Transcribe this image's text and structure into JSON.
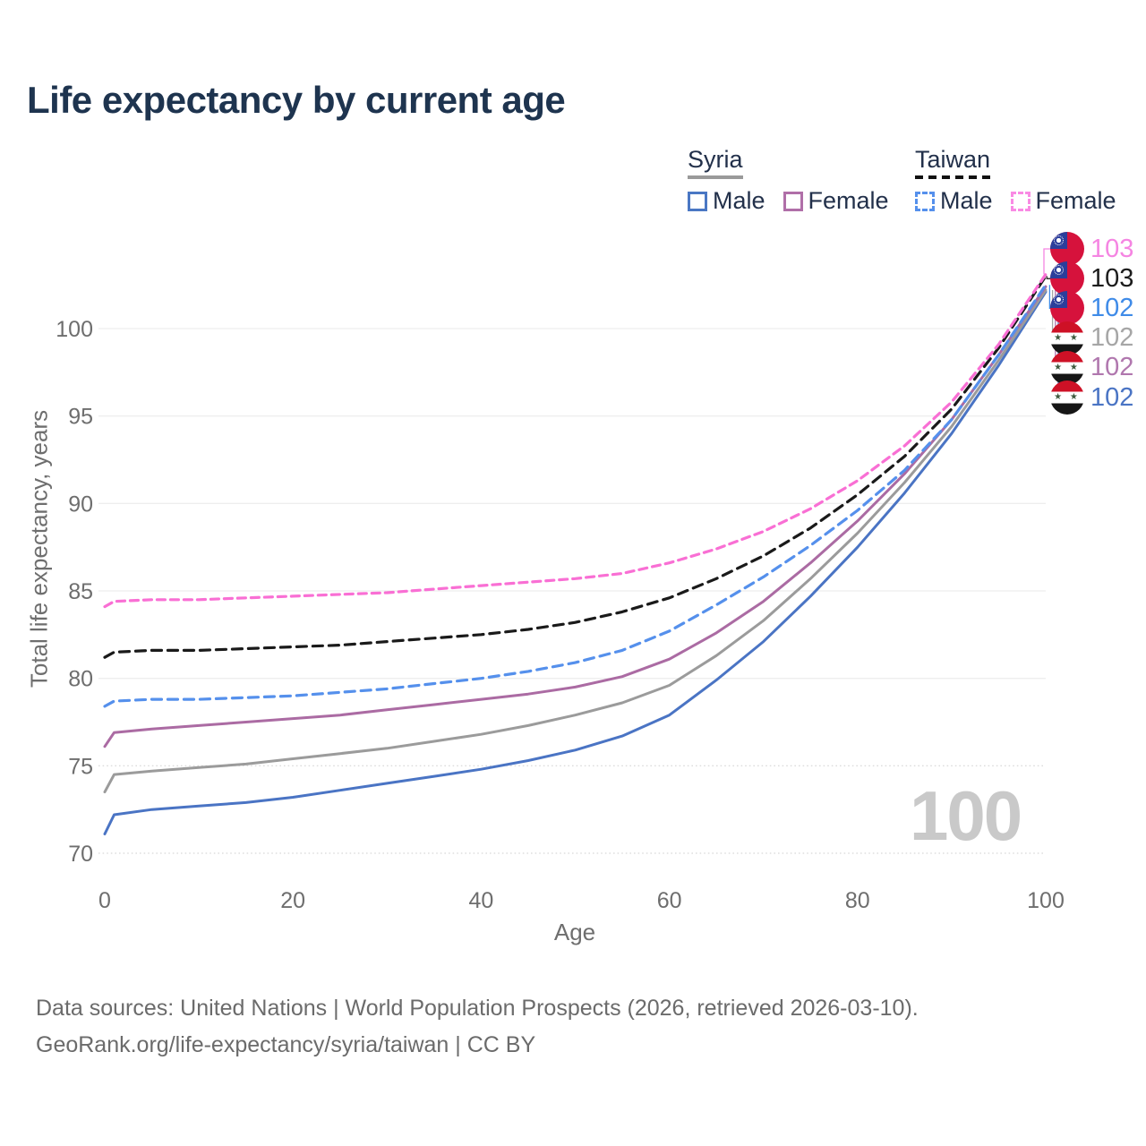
{
  "title": "Life expectancy by current age",
  "watermark": "100",
  "legend": {
    "groups": [
      {
        "id": "syria",
        "name": "Syria",
        "line_style": "solid",
        "line_color": "#9a9a9a",
        "items": [
          {
            "id": "syria-male",
            "label": "Male",
            "color": "#4a77c4",
            "style": "solid"
          },
          {
            "id": "syria-female",
            "label": "Female",
            "color": "#b06fa8",
            "style": "solid"
          }
        ]
      },
      {
        "id": "taiwan",
        "name": "Taiwan",
        "line_style": "dashed",
        "line_color": "#111111",
        "items": [
          {
            "id": "taiwan-male",
            "label": "Male",
            "color": "#5590ec",
            "style": "dashed"
          },
          {
            "id": "taiwan-female",
            "label": "Female",
            "color": "#f98ae4",
            "style": "dashed"
          }
        ]
      }
    ]
  },
  "chart_data": {
    "type": "line",
    "title": "Life expectancy by current age",
    "xlabel": "Age",
    "ylabel": "Total life expectancy, years",
    "xlim": [
      0,
      100
    ],
    "ylim": [
      69.5,
      103.5
    ],
    "x_ticks": [
      0,
      20,
      40,
      60,
      80,
      100
    ],
    "y_ticks": [
      {
        "value": 70,
        "style": "dotted"
      },
      {
        "value": 75,
        "style": "dotted"
      },
      {
        "value": 80,
        "style": "solid"
      },
      {
        "value": 85,
        "style": "solid"
      },
      {
        "value": 90,
        "style": "solid"
      },
      {
        "value": 95,
        "style": "solid"
      },
      {
        "value": 100,
        "style": "solid"
      }
    ],
    "grid": true,
    "legend_position": "top-right",
    "series": [
      {
        "id": "syria-male",
        "country": "Syria",
        "sex": "Male",
        "color": "#4a74c4",
        "dash": null,
        "width": 3,
        "points": [
          [
            0,
            71.1
          ],
          [
            1,
            72.2
          ],
          [
            5,
            72.5
          ],
          [
            10,
            72.7
          ],
          [
            15,
            72.9
          ],
          [
            20,
            73.2
          ],
          [
            25,
            73.6
          ],
          [
            30,
            74.0
          ],
          [
            35,
            74.4
          ],
          [
            40,
            74.8
          ],
          [
            45,
            75.3
          ],
          [
            50,
            75.9
          ],
          [
            55,
            76.7
          ],
          [
            60,
            77.9
          ],
          [
            65,
            79.9
          ],
          [
            70,
            82.1
          ],
          [
            75,
            84.7
          ],
          [
            80,
            87.5
          ],
          [
            85,
            90.6
          ],
          [
            90,
            94.0
          ],
          [
            95,
            97.9
          ],
          [
            100,
            102.1
          ]
        ]
      },
      {
        "id": "syria-combined",
        "country": "Syria",
        "sex": "Both",
        "color": "#9b9b9b",
        "dash": null,
        "width": 3,
        "points": [
          [
            0,
            73.5
          ],
          [
            1,
            74.5
          ],
          [
            5,
            74.7
          ],
          [
            10,
            74.9
          ],
          [
            15,
            75.1
          ],
          [
            20,
            75.4
          ],
          [
            25,
            75.7
          ],
          [
            30,
            76.0
          ],
          [
            35,
            76.4
          ],
          [
            40,
            76.8
          ],
          [
            45,
            77.3
          ],
          [
            50,
            77.9
          ],
          [
            55,
            78.6
          ],
          [
            60,
            79.6
          ],
          [
            65,
            81.3
          ],
          [
            70,
            83.3
          ],
          [
            75,
            85.7
          ],
          [
            80,
            88.3
          ],
          [
            85,
            91.2
          ],
          [
            90,
            94.4
          ],
          [
            95,
            98.2
          ],
          [
            100,
            102.2
          ]
        ]
      },
      {
        "id": "syria-female",
        "country": "Syria",
        "sex": "Female",
        "color": "#ab6ba3",
        "dash": null,
        "width": 3,
        "points": [
          [
            0,
            76.1
          ],
          [
            1,
            76.9
          ],
          [
            5,
            77.1
          ],
          [
            10,
            77.3
          ],
          [
            15,
            77.5
          ],
          [
            20,
            77.7
          ],
          [
            25,
            77.9
          ],
          [
            30,
            78.2
          ],
          [
            35,
            78.5
          ],
          [
            40,
            78.8
          ],
          [
            45,
            79.1
          ],
          [
            50,
            79.5
          ],
          [
            55,
            80.1
          ],
          [
            60,
            81.1
          ],
          [
            65,
            82.6
          ],
          [
            70,
            84.4
          ],
          [
            75,
            86.6
          ],
          [
            80,
            89.0
          ],
          [
            85,
            91.7
          ],
          [
            90,
            94.8
          ],
          [
            95,
            98.5
          ],
          [
            100,
            102.4
          ]
        ]
      },
      {
        "id": "taiwan-male",
        "country": "Taiwan",
        "sex": "Male",
        "color": "#5590ec",
        "dash": "11 7",
        "width": 3.2,
        "points": [
          [
            0,
            78.4
          ],
          [
            1,
            78.7
          ],
          [
            5,
            78.8
          ],
          [
            10,
            78.8
          ],
          [
            15,
            78.9
          ],
          [
            20,
            79.0
          ],
          [
            25,
            79.2
          ],
          [
            30,
            79.4
          ],
          [
            35,
            79.7
          ],
          [
            40,
            80.0
          ],
          [
            45,
            80.4
          ],
          [
            50,
            80.9
          ],
          [
            55,
            81.6
          ],
          [
            60,
            82.7
          ],
          [
            65,
            84.2
          ],
          [
            70,
            85.8
          ],
          [
            75,
            87.6
          ],
          [
            80,
            89.6
          ],
          [
            85,
            91.9
          ],
          [
            90,
            94.8
          ],
          [
            95,
            98.5
          ],
          [
            100,
            102.5
          ]
        ]
      },
      {
        "id": "taiwan-combined",
        "country": "Taiwan",
        "sex": "Both",
        "color": "#1a1a1a",
        "dash": "11 7",
        "width": 3.2,
        "points": [
          [
            0,
            81.2
          ],
          [
            1,
            81.5
          ],
          [
            5,
            81.6
          ],
          [
            10,
            81.6
          ],
          [
            15,
            81.7
          ],
          [
            20,
            81.8
          ],
          [
            25,
            81.9
          ],
          [
            30,
            82.1
          ],
          [
            35,
            82.3
          ],
          [
            40,
            82.5
          ],
          [
            45,
            82.8
          ],
          [
            50,
            83.2
          ],
          [
            55,
            83.8
          ],
          [
            60,
            84.6
          ],
          [
            65,
            85.7
          ],
          [
            70,
            87.0
          ],
          [
            75,
            88.6
          ],
          [
            80,
            90.5
          ],
          [
            85,
            92.7
          ],
          [
            90,
            95.4
          ],
          [
            95,
            98.9
          ],
          [
            100,
            103.0
          ]
        ]
      },
      {
        "id": "taiwan-female",
        "country": "Taiwan",
        "sex": "Female",
        "color": "#f96fd4",
        "dash": "9 6",
        "width": 3.2,
        "points": [
          [
            0,
            84.1
          ],
          [
            1,
            84.4
          ],
          [
            5,
            84.5
          ],
          [
            10,
            84.5
          ],
          [
            15,
            84.6
          ],
          [
            20,
            84.7
          ],
          [
            25,
            84.8
          ],
          [
            30,
            84.9
          ],
          [
            35,
            85.1
          ],
          [
            40,
            85.3
          ],
          [
            45,
            85.5
          ],
          [
            50,
            85.7
          ],
          [
            55,
            86.0
          ],
          [
            60,
            86.6
          ],
          [
            65,
            87.4
          ],
          [
            70,
            88.4
          ],
          [
            75,
            89.7
          ],
          [
            80,
            91.3
          ],
          [
            85,
            93.3
          ],
          [
            90,
            95.8
          ],
          [
            95,
            99.1
          ],
          [
            100,
            103.1
          ]
        ]
      }
    ]
  },
  "end_labels": [
    {
      "series": "taiwan-female",
      "flag": "taiwan",
      "value": "103",
      "color": "#f585e2"
    },
    {
      "series": "taiwan-combined",
      "flag": "taiwan",
      "value": "103",
      "color": "#1c1c1c"
    },
    {
      "series": "taiwan-male",
      "flag": "taiwan",
      "value": "102",
      "color": "#3f8be8"
    },
    {
      "series": "syria-combined",
      "flag": "syria",
      "value": "102",
      "color": "#a6a6a6"
    },
    {
      "series": "syria-female",
      "flag": "syria",
      "value": "102",
      "color": "#b077ae"
    },
    {
      "series": "syria-male",
      "flag": "syria",
      "value": "102",
      "color": "#4a74c4"
    }
  ],
  "flags": {
    "taiwan": {
      "field": "#d6123c",
      "canton": "#2b3e9b",
      "sun": "#ffffff"
    },
    "syria": {
      "top": "#ce1126",
      "middle": "#ffffff",
      "bottom": "#161616",
      "stars": "#3e5a3e",
      "stars_glyph": "★ ★"
    }
  },
  "footer": {
    "line1": "Data sources: United Nations | World Population Prospects (2026, retrieved 2026-03-10).",
    "line2": "GeoRank.org/life-expectancy/syria/taiwan | CC BY"
  }
}
